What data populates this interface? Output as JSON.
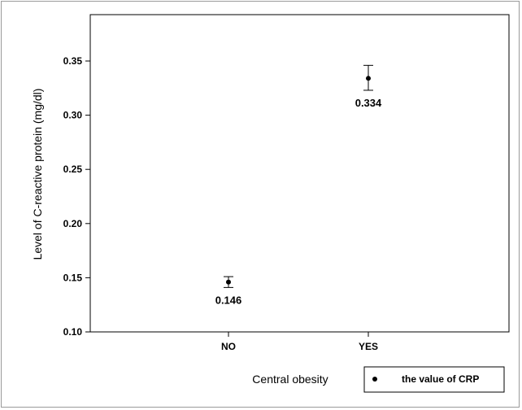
{
  "chart_data": {
    "type": "scatter",
    "categories": [
      "NO",
      "YES"
    ],
    "values": [
      0.146,
      0.334
    ],
    "error_low": [
      0.141,
      0.323
    ],
    "error_high": [
      0.151,
      0.346
    ],
    "data_labels": [
      "0.146",
      "0.334"
    ],
    "xlabel": "Central obesity",
    "ylabel": "Level of C-reactive protein (mg/dl)",
    "ylim": [
      0.1,
      0.36
    ],
    "yticks": [
      "0.10",
      "0.15",
      "0.20",
      "0.25",
      "0.30",
      "0.35"
    ],
    "grid": false,
    "legend": {
      "label": "the value of CRP",
      "placement": "bottom-right"
    },
    "colors": {
      "marker": "#000000",
      "axis": "#000000",
      "frame": "#9a9a9a"
    }
  }
}
